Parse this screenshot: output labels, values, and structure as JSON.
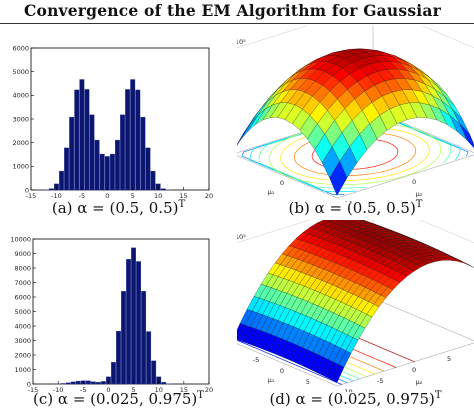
{
  "header": {
    "title": "Convergence of the EM Algorithm for Gaussiar"
  },
  "panels": [
    {
      "caption": "(a) α = (0.5, 0.5)",
      "caption_sup": "T",
      "chart_data": {
        "type": "bar",
        "x_ticks": [
          "-15",
          "-10",
          "-5",
          "0",
          "5",
          "10",
          "15",
          "20"
        ],
        "y_ticks": [
          "0",
          "1000",
          "2000",
          "3000",
          "4000",
          "5000",
          "6000"
        ],
        "xlim": [
          -15,
          20
        ],
        "ylim": [
          0,
          6000
        ],
        "bar_color": "#0b1670",
        "distribution": "bimodal mixture, means -5 and 5, equal weights",
        "x": [
          -12,
          -11,
          -10,
          -9,
          -8,
          -7,
          -6,
          -5,
          -4,
          -3,
          -2,
          -1,
          0,
          1,
          2,
          3,
          4,
          5,
          6,
          7,
          8,
          9,
          10,
          11,
          12
        ],
        "values": [
          10,
          60,
          260,
          800,
          1780,
          3080,
          4230,
          4670,
          4250,
          3180,
          2110,
          1520,
          1420,
          1520,
          2110,
          3180,
          4250,
          4670,
          4230,
          3080,
          1780,
          800,
          260,
          60,
          10
        ]
      }
    },
    {
      "caption": "(b) α = (0.5, 0.5)",
      "caption_sup": "T",
      "chart_data": {
        "type": "surface",
        "z_exponent": "x 10⁵",
        "z_ticks": [
          "-9",
          "-8",
          "-7",
          "-6",
          "-5"
        ],
        "z_axis_label": "L(μ₁,μ₂)",
        "x_axis_label": "μ₁",
        "y_axis_label": "μ₂",
        "x_ticks": [
          "-10",
          "0",
          "10"
        ],
        "y_ticks": [
          "-10",
          "0",
          "10"
        ],
        "zlim": [
          -9,
          -5
        ],
        "colormap": "jet"
      }
    },
    {
      "caption": "(c) α = (0.025, 0.975)",
      "caption_sup": "T",
      "chart_data": {
        "type": "bar",
        "x_ticks": [
          "-15",
          "-10",
          "-5",
          "0",
          "5",
          "10",
          "15",
          "20"
        ],
        "y_ticks": [
          "0",
          "1000",
          "2000",
          "3000",
          "4000",
          "5000",
          "6000",
          "7000",
          "8000",
          "9000",
          "10000"
        ],
        "xlim": [
          -15,
          20
        ],
        "ylim": [
          0,
          10000
        ],
        "bar_color": "#0b1670",
        "distribution": "mixture, means -5 and 5, weights 0.025 and 0.975",
        "x": [
          -12,
          -11,
          -10,
          -9,
          -8,
          -7,
          -6,
          -5,
          -4,
          -3,
          -2,
          -1,
          0,
          1,
          2,
          3,
          4,
          5,
          6,
          7,
          8,
          9,
          10,
          11,
          12
        ],
        "values": [
          0,
          0,
          10,
          40,
          90,
          150,
          200,
          230,
          220,
          160,
          130,
          180,
          500,
          1500,
          3650,
          6400,
          8600,
          9400,
          8450,
          6400,
          3620,
          1600,
          500,
          120,
          20
        ]
      }
    },
    {
      "caption": "(d) α = (0.025, 0.975)",
      "caption_sup": "T",
      "chart_data": {
        "type": "surface",
        "z_exponent": "x 10⁵",
        "z_ticks": [
          "-9",
          "-8",
          "-7",
          "-6",
          "-5",
          "-4"
        ],
        "z_axis_label": "L(μ₁,μ₂)",
        "x_axis_label": "μ₁",
        "y_axis_label": "μ₂",
        "x_ticks": [
          "-10",
          "-5",
          "0",
          "5"
        ],
        "y_ticks": [
          "-10",
          "-5",
          "0",
          "5",
          "10"
        ],
        "zlim": [
          -9,
          -4
        ],
        "colormap": "jet"
      }
    }
  ]
}
